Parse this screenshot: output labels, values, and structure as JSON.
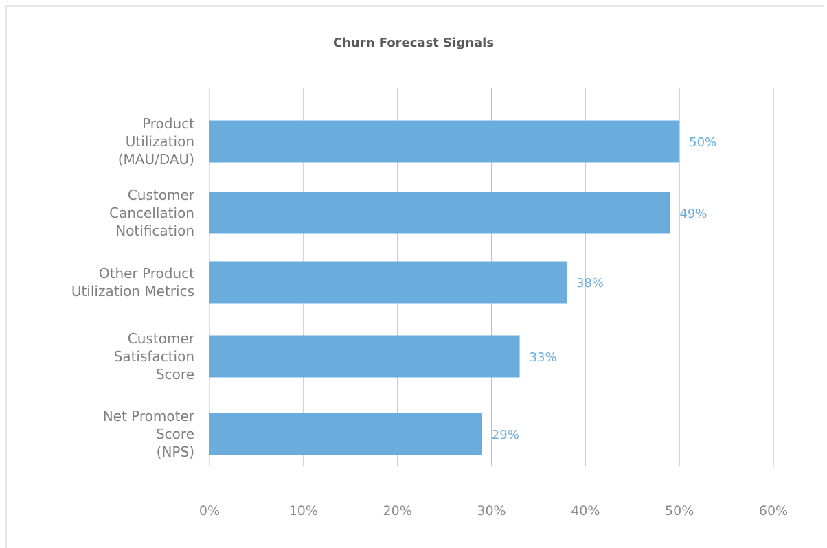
{
  "chart_data": {
    "type": "bar",
    "orientation": "horizontal",
    "title": "Churn Forecast Signals",
    "xlabel": "",
    "ylabel": "",
    "xlim": [
      0,
      60
    ],
    "x_ticks": [
      "0%",
      "10%",
      "20%",
      "30%",
      "40%",
      "50%",
      "60%"
    ],
    "grid": true,
    "legend": "none",
    "bar_color": "#6aaddd",
    "categories": [
      "Product Utilization (MAU/DAU)",
      "Customer Cancellation Notification",
      "Other Product Utilization Metrics",
      "Customer Satisfaction Score",
      "Net Promoter Score (NPS)"
    ],
    "category_lines": [
      [
        "Product",
        "Utilization",
        "(MAU/DAU)"
      ],
      [
        "Customer",
        "Cancellation",
        "Notification"
      ],
      [
        "Other Product",
        "Utilization Metrics"
      ],
      [
        "Customer",
        "Satisfaction",
        "Score"
      ],
      [
        "Net Promoter",
        "Score",
        "(NPS)"
      ]
    ],
    "values": [
      50,
      49,
      38,
      33,
      29
    ],
    "data_labels": [
      "50%",
      "49%",
      "38%",
      "33%",
      "29%"
    ]
  }
}
